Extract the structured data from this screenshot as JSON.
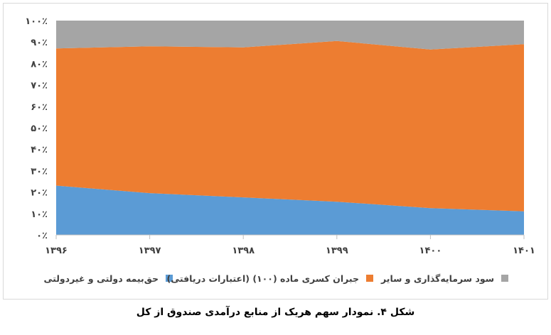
{
  "caption": "شکل ۴. نمودار سهم هریک از منابع درآمدی صندوق از کل",
  "chart_data": {
    "type": "area",
    "stacked": "percent",
    "categories": [
      "۱۳۹۶",
      "۱۳۹۷",
      "۱۳۹۸",
      "۱۳۹۹",
      "۱۴۰۰",
      "۱۴۰۱"
    ],
    "series": [
      {
        "name": "حق‌بیمه دولتی و غیردولتی",
        "color": "#5b9bd5",
        "values": [
          23,
          19.5,
          17.5,
          15.5,
          12.5,
          11
        ]
      },
      {
        "name": "جبران کسری ماده (۱۰۰) (اعتبارات دریافتی)",
        "color": "#ed7d31",
        "values": [
          64,
          68.5,
          70,
          75,
          74,
          78
        ]
      },
      {
        "name": "سود سرمایه‌گذاری و سایر",
        "color": "#a5a5a5",
        "values": [
          13,
          12,
          12.5,
          9.5,
          13.5,
          11
        ]
      }
    ],
    "ylim": [
      0,
      100
    ],
    "y_ticks": [
      "۰٪",
      "۱۰٪",
      "۲۰٪",
      "۳۰٪",
      "۴۰٪",
      "۵۰٪",
      "۶۰٪",
      "۷۰٪",
      "۸۰٪",
      "۹۰٪",
      "۱۰۰٪"
    ],
    "legend_position": "bottom",
    "grid": false
  }
}
